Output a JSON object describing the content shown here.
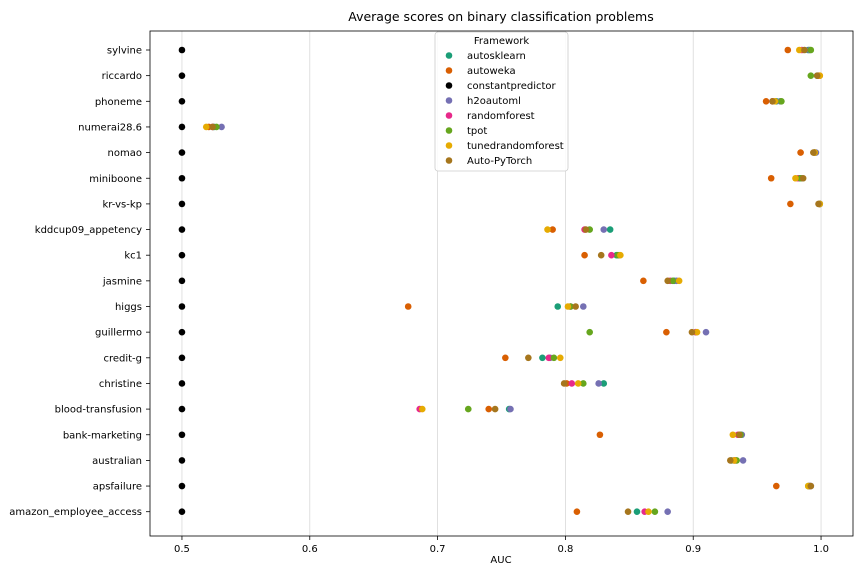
{
  "chart_data": {
    "type": "scatter",
    "title": "Average scores on binary classification problems",
    "xlabel": "AUC",
    "ylabel": "",
    "xlim": [
      0.475,
      1.025
    ],
    "xticks": [
      "0.5",
      "0.6",
      "0.7",
      "0.8",
      "0.9",
      "1.0"
    ],
    "xtick_values": [
      0.5,
      0.6,
      0.7,
      0.8,
      0.9,
      1.0
    ],
    "grid": "vertical",
    "legend": {
      "title": "Framework",
      "placement": "top-center"
    },
    "categories": [
      "sylvine",
      "riccardo",
      "phoneme",
      "numerai28.6",
      "nomao",
      "miniboone",
      "kr-vs-kp",
      "kddcup09_appetency",
      "kc1",
      "jasmine",
      "higgs",
      "guillermo",
      "credit-g",
      "christine",
      "blood-transfusion",
      "bank-marketing",
      "australian",
      "apsfailure",
      "amazon_employee_access"
    ],
    "series": [
      {
        "name": "autosklearn",
        "color": "#1b9e77",
        "values": [
          0.99,
          0.997,
          0.965,
          0.525,
          0.995,
          0.983,
          0.999,
          0.835,
          0.84,
          0.885,
          0.794,
          0.902,
          0.782,
          0.83,
          0.756,
          0.937,
          0.93,
          0.991,
          0.856
        ]
      },
      {
        "name": "autoweka",
        "color": "#d95f02",
        "values": [
          0.974,
          0.999,
          0.957,
          0.521,
          0.984,
          0.961,
          0.976,
          0.79,
          0.815,
          0.861,
          0.677,
          0.879,
          0.753,
          0.801,
          0.74,
          0.827,
          0.933,
          0.965,
          0.809
        ]
      },
      {
        "name": "constantpredictor",
        "color": "#000000",
        "values": [
          0.5,
          0.5,
          0.5,
          0.5,
          0.5,
          0.5,
          0.5,
          0.5,
          0.5,
          0.5,
          0.5,
          0.5,
          0.5,
          0.5,
          0.5,
          0.5,
          0.5,
          0.5,
          0.5
        ]
      },
      {
        "name": "h2oautoml",
        "color": "#7570b3",
        "values": [
          0.991,
          0.998,
          0.968,
          0.531,
          0.996,
          0.985,
          0.999,
          0.83,
          0.842,
          0.887,
          0.814,
          0.91,
          0.788,
          0.826,
          0.757,
          0.938,
          0.939,
          0.992,
          0.88
        ]
      },
      {
        "name": "randomforest",
        "color": "#e7298a",
        "values": [
          0.985,
          0.998,
          0.962,
          0.524,
          0.995,
          0.982,
          0.999,
          0.815,
          0.836,
          0.882,
          0.804,
          0.902,
          0.787,
          0.805,
          0.686,
          0.935,
          0.932,
          0.991,
          0.862
        ]
      },
      {
        "name": "tpot",
        "color": "#66a61e",
        "values": [
          0.992,
          0.992,
          0.969,
          0.527,
          0.995,
          0.984,
          0.999,
          0.819,
          0.841,
          0.884,
          0.804,
          0.819,
          0.791,
          0.814,
          0.724,
          0.937,
          0.934,
          0.99,
          0.87
        ]
      },
      {
        "name": "tunedrandomforest",
        "color": "#e6ab02",
        "values": [
          0.983,
          0.999,
          0.964,
          0.519,
          0.995,
          0.98,
          0.999,
          0.786,
          0.843,
          0.889,
          0.802,
          0.903,
          0.796,
          0.81,
          0.688,
          0.931,
          0.932,
          0.99,
          0.865
        ]
      },
      {
        "name": "Auto-PyTorch",
        "color": "#a6761d",
        "values": [
          0.987,
          0.997,
          0.962,
          0.524,
          0.994,
          0.986,
          0.998,
          0.816,
          0.828,
          0.88,
          0.808,
          0.899,
          0.771,
          0.799,
          0.745,
          0.936,
          0.929,
          0.992,
          0.849
        ]
      }
    ]
  }
}
